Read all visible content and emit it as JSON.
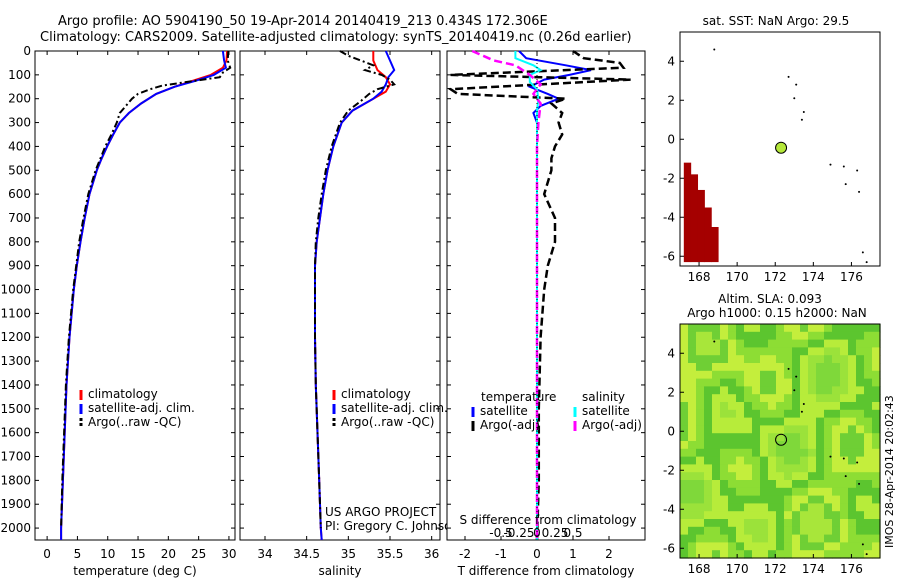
{
  "header": {
    "line1": "Argo profile: AO 5904190_50 19-Apr-2014 20140419_213 0.434S 172.306E",
    "line2": "Climatology: CARS2009. Satellite-adjusted climatology: synTS_20140419.nc (0.26d earlier)"
  },
  "colors": {
    "climatology": "#ff0000",
    "satellite": "#0000ff",
    "argo": "#000000",
    "sat_salinity": "#00ffff",
    "argo_salinity": "#ff00ff"
  },
  "depth_axis": {
    "ylim": [
      0,
      2050
    ],
    "ticks": [
      0,
      100,
      200,
      300,
      400,
      500,
      600,
      700,
      800,
      900,
      1000,
      1100,
      1200,
      1300,
      1400,
      1500,
      1600,
      1700,
      1800,
      1900,
      2000
    ]
  },
  "chart_data": [
    {
      "type": "line",
      "name": "temperature",
      "xlabel": "temperature (deg C)",
      "xlim": [
        -2,
        31
      ],
      "xticks": [
        0,
        5,
        10,
        15,
        20,
        25,
        30
      ],
      "legend": [
        "climatology",
        "satellite-adj. clim.",
        "Argo(..raw -QC)"
      ],
      "series": [
        {
          "name": "climatology",
          "depth": [
            0,
            40,
            70,
            100,
            125,
            150,
            180,
            220,
            260,
            300,
            350,
            400,
            450,
            500,
            600,
            700,
            800,
            900,
            1000,
            1200,
            1400,
            1600,
            1800,
            2000,
            2050
          ],
          "values": [
            29.7,
            29.6,
            29.0,
            27.0,
            24.0,
            21.0,
            18.0,
            15.5,
            13.5,
            12.0,
            10.9,
            9.9,
            9.0,
            8.2,
            7.0,
            6.2,
            5.5,
            4.9,
            4.4,
            3.7,
            3.2,
            2.9,
            2.6,
            2.3,
            2.3
          ]
        },
        {
          "name": "satellite-adj. clim.",
          "depth": [
            0,
            40,
            70,
            100,
            125,
            150,
            180,
            220,
            260,
            300,
            350,
            400,
            450,
            500,
            600,
            700,
            800,
            900,
            1000,
            1200,
            1400,
            1600,
            1800,
            2000,
            2050
          ],
          "values": [
            29.0,
            29.2,
            29.5,
            27.5,
            24.5,
            21.0,
            18.0,
            15.5,
            13.5,
            12.0,
            10.9,
            9.9,
            9.0,
            8.2,
            7.0,
            6.2,
            5.5,
            4.9,
            4.4,
            3.7,
            3.2,
            2.9,
            2.6,
            2.3,
            2.3
          ]
        },
        {
          "name": "Argo(..raw -QC)",
          "depth": [
            0,
            40,
            70,
            90,
            110,
            130,
            145,
            160,
            180,
            200,
            230,
            260,
            300,
            350,
            400,
            500,
            600,
            700,
            800,
            900,
            1000,
            1200,
            1400,
            1600,
            1800,
            2000
          ],
          "values": [
            29.9,
            29.8,
            30.2,
            29.0,
            28.5,
            23.0,
            19.0,
            17.0,
            15.0,
            14.0,
            13.0,
            12.0,
            11.5,
            10.6,
            9.6,
            8.0,
            6.8,
            6.0,
            5.3,
            4.8,
            4.3,
            3.6,
            3.1,
            2.8,
            2.5,
            2.3
          ]
        }
      ]
    },
    {
      "type": "line",
      "name": "salinity",
      "xlabel": "salinity",
      "xlim": [
        33.7,
        36.1
      ],
      "xticks": [
        34,
        34.5,
        35,
        35.5,
        36
      ],
      "legend": [
        "climatology",
        "satellite-adj. clim.",
        "Argo(..raw -QC)"
      ],
      "annotation": [
        "US ARGO PROJECT",
        "PI: Gregory C. Johnson"
      ],
      "series": [
        {
          "name": "climatology",
          "depth": [
            0,
            40,
            80,
            110,
            140,
            170,
            200,
            250,
            300,
            400,
            500,
            600,
            700,
            800,
            900,
            1000,
            1200,
            1400,
            1600,
            1800,
            2000,
            2050
          ],
          "values": [
            35.3,
            35.3,
            35.35,
            35.45,
            35.5,
            35.45,
            35.3,
            35.05,
            34.92,
            34.82,
            34.75,
            34.7,
            34.66,
            34.62,
            34.6,
            34.6,
            34.6,
            34.61,
            34.63,
            34.65,
            34.67,
            34.68
          ]
        },
        {
          "name": "satellite-adj. clim.",
          "depth": [
            0,
            40,
            80,
            110,
            140,
            170,
            200,
            250,
            300,
            400,
            500,
            600,
            700,
            800,
            900,
            1000,
            1200,
            1400,
            1600,
            1800,
            2000,
            2050
          ],
          "values": [
            35.45,
            35.5,
            35.55,
            35.48,
            35.45,
            35.4,
            35.3,
            35.05,
            34.92,
            34.82,
            34.75,
            34.7,
            34.66,
            34.62,
            34.6,
            34.6,
            34.6,
            34.61,
            34.63,
            34.65,
            34.67,
            34.68
          ]
        },
        {
          "name": "Argo(..raw -QC)",
          "depth": [
            0,
            20,
            40,
            60,
            80,
            100,
            120,
            140,
            160,
            180,
            210,
            250,
            300,
            400,
            500,
            600,
            700,
            800,
            900,
            1000,
            1200,
            1400,
            1600,
            1800,
            2000
          ],
          "values": [
            34.9,
            35.0,
            35.15,
            35.3,
            35.2,
            35.4,
            35.5,
            35.55,
            35.35,
            35.25,
            35.15,
            35.0,
            34.9,
            34.8,
            34.73,
            34.68,
            34.64,
            34.61,
            34.6,
            34.6,
            34.6,
            34.61,
            34.63,
            34.65,
            34.67
          ]
        }
      ]
    },
    {
      "type": "line",
      "name": "differences",
      "xlabel": "T difference from climatology",
      "xlabel_top": "S difference from climatology",
      "xlim": [
        -2.5,
        3.0
      ],
      "xticks": [
        -2,
        -1,
        0,
        1,
        2
      ],
      "s_ticks": [
        "-0.5",
        "-0.25",
        "0",
        "0.25",
        "0.5"
      ],
      "legend_left": [
        "temperature",
        "satellite",
        "Argo(-adj)"
      ],
      "legend_right": [
        "salinity",
        "satellite",
        "Argo(-adj)"
      ],
      "series": [
        {
          "name": "T satellite",
          "depth": [
            0,
            30,
            60,
            80,
            100,
            120,
            150,
            180,
            200,
            230,
            260,
            300,
            400,
            500,
            600,
            800,
            1000,
            1200,
            1500,
            1800,
            2050
          ],
          "values": [
            -0.5,
            -0.3,
            0.8,
            1.5,
            0.9,
            0.2,
            -0.2,
            0.3,
            0.6,
            0.1,
            -0.1,
            0.0,
            0.0,
            0.0,
            0.0,
            0.0,
            0.0,
            0.0,
            0.0,
            0.0,
            0.0
          ]
        },
        {
          "name": "T Argo(-adj)",
          "depth": [
            0,
            30,
            50,
            70,
            100,
            120,
            160,
            180,
            200,
            220,
            260,
            300,
            350,
            400,
            450,
            500,
            600,
            700,
            800,
            900,
            1000,
            1200,
            1500,
            1800,
            2050
          ],
          "values": [
            1.0,
            1.3,
            2.3,
            2.4,
            -2.4,
            2.6,
            -2.4,
            -2.2,
            0.8,
            0.4,
            0.7,
            0.6,
            0.7,
            0.5,
            0.4,
            0.4,
            0.2,
            0.5,
            0.5,
            0.3,
            0.2,
            0.1,
            0.05,
            0.05,
            0.0
          ]
        },
        {
          "name": "S satellite",
          "depth": [
            0,
            30,
            60,
            80,
            100,
            130,
            160,
            200,
            250,
            300,
            400,
            600,
            800,
            1000,
            1500,
            2050
          ],
          "values": [
            -0.3,
            -0.3,
            -0.05,
            0.05,
            -0.1,
            -0.1,
            0.0,
            0.02,
            0.0,
            0.0,
            0.0,
            0.0,
            0.0,
            0.0,
            0.0,
            0.0
          ]
        },
        {
          "name": "S Argo(-adj)",
          "depth": [
            0,
            40,
            60,
            100,
            140,
            180,
            220,
            300,
            400,
            600,
            800,
            1000,
            1500,
            2050
          ],
          "values": [
            -0.9,
            -0.6,
            -0.3,
            -0.1,
            0.05,
            -0.05,
            0.05,
            0.02,
            0.0,
            0.0,
            0.0,
            0.0,
            0.0,
            0.0
          ]
        }
      ]
    },
    {
      "type": "scatter",
      "name": "sst-map",
      "title": "sat. SST: NaN Argo: 29.5",
      "xlim": [
        167,
        177.5
      ],
      "ylim": [
        -6.5,
        5.5
      ],
      "xticks": [
        168,
        170,
        172,
        174,
        176
      ],
      "yticks": [
        -6,
        -4,
        -2,
        0,
        2,
        4
      ],
      "argo_position": {
        "lon": 172.306,
        "lat": -0.434
      }
    },
    {
      "type": "heatmap",
      "name": "sla-map",
      "title": "Altim. SLA: 0.093",
      "subtitle": "Argo h1000: 0.15 h2000: NaN",
      "xlim": [
        167,
        177.5
      ],
      "ylim": [
        -6.5,
        5.5
      ],
      "xticks": [
        168,
        170,
        172,
        174,
        176
      ],
      "yticks": [
        -6,
        -4,
        -2,
        0,
        2,
        4
      ],
      "argo_position": {
        "lon": 172.306,
        "lat": -0.434
      }
    }
  ],
  "footer": {
    "stamp": "IMOS 28-Apr-2014 20:02:43"
  }
}
